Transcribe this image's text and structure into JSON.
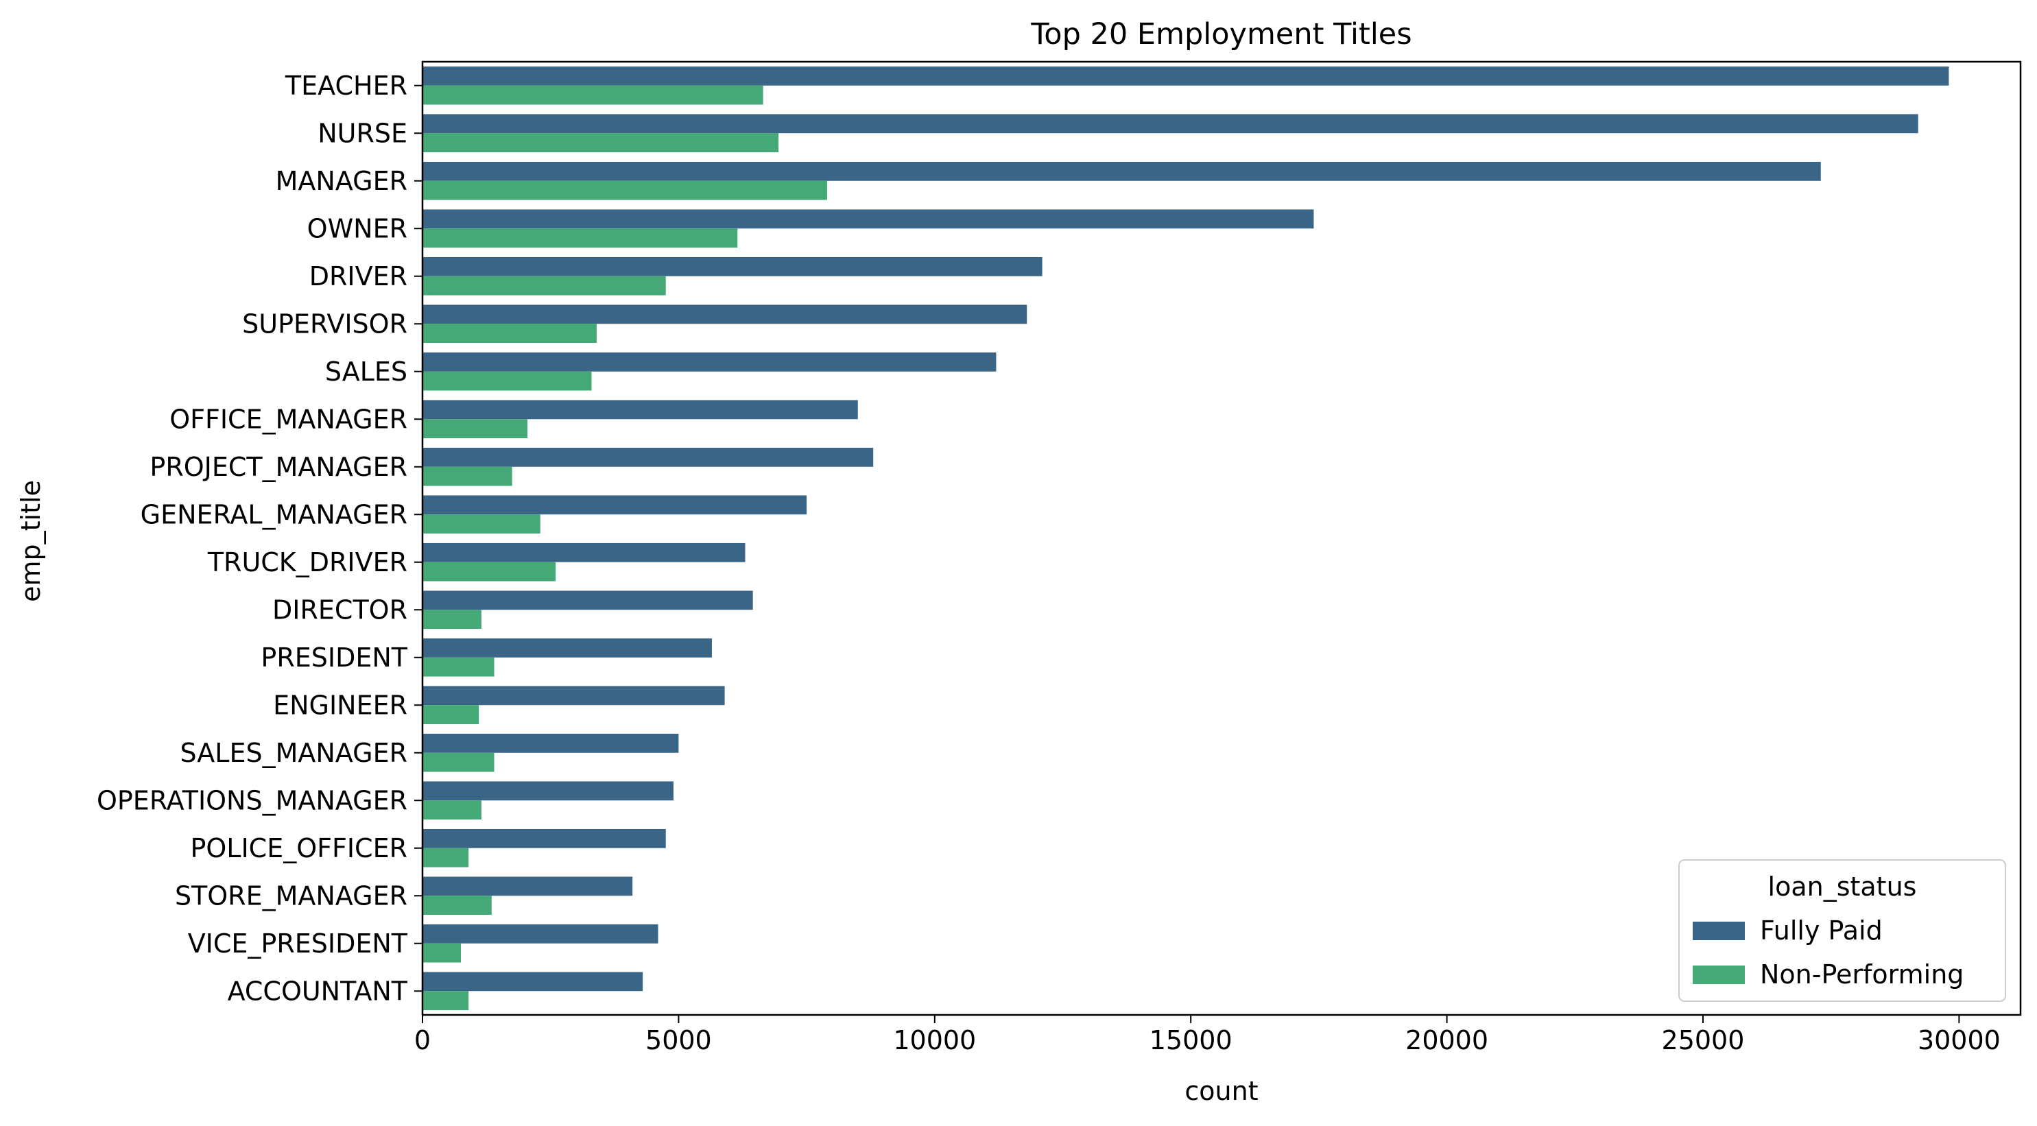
{
  "chart_data": {
    "type": "bar",
    "orientation": "horizontal",
    "title": "Top 20 Employment Titles",
    "xlabel": "count",
    "ylabel": "emp_title",
    "xlim": [
      0,
      31200
    ],
    "xticks": [
      0,
      5000,
      10000,
      15000,
      20000,
      25000,
      30000
    ],
    "grid": false,
    "categories": [
      "TEACHER",
      "NURSE",
      "MANAGER",
      "OWNER",
      "DRIVER",
      "SUPERVISOR",
      "SALES",
      "OFFICE_MANAGER",
      "PROJECT_MANAGER",
      "GENERAL_MANAGER",
      "TRUCK_DRIVER",
      "DIRECTOR",
      "PRESIDENT",
      "ENGINEER",
      "SALES_MANAGER",
      "OPERATIONS_MANAGER",
      "POLICE_OFFICER",
      "STORE_MANAGER",
      "VICE_PRESIDENT",
      "ACCOUNTANT"
    ],
    "series": [
      {
        "name": "Fully Paid",
        "color": "#3b6586",
        "values": [
          29800,
          29200,
          27300,
          17400,
          12100,
          11800,
          11200,
          8500,
          8800,
          7500,
          6300,
          6450,
          5650,
          5900,
          5000,
          4900,
          4750,
          4100,
          4600,
          4300
        ]
      },
      {
        "name": "Non-Performing",
        "color": "#44a977",
        "values": [
          6650,
          6950,
          7900,
          6150,
          4750,
          3400,
          3300,
          2050,
          1750,
          2300,
          2600,
          1150,
          1400,
          1100,
          1400,
          1150,
          900,
          1350,
          750,
          900
        ]
      }
    ],
    "legend": {
      "title": "loan_status",
      "position": "lower-right"
    }
  }
}
